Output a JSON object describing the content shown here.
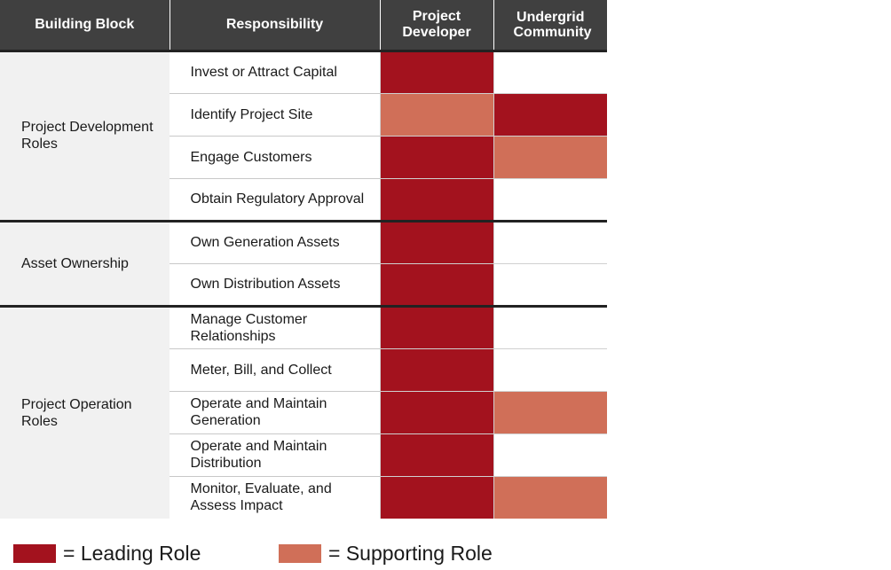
{
  "colors": {
    "leading": "#a3121e",
    "supporting": "#d06f58",
    "none": "#ffffff"
  },
  "header": {
    "building_block": "Building Block",
    "responsibility": "Responsibility",
    "project_developer": "Project Developer",
    "undergrid_community": "Undergrid Community"
  },
  "groups": [
    {
      "name": "Project Development Roles",
      "rows": [
        {
          "responsibility": "Invest or Attract Capital",
          "project_developer": "leading",
          "undergrid_community": "none"
        },
        {
          "responsibility": "Identify Project Site",
          "project_developer": "supporting",
          "undergrid_community": "leading"
        },
        {
          "responsibility": "Engage Customers",
          "project_developer": "leading",
          "undergrid_community": "supporting"
        },
        {
          "responsibility": "Obtain Regulatory Approval",
          "project_developer": "leading",
          "undergrid_community": "none"
        }
      ]
    },
    {
      "name": "Asset Ownership",
      "rows": [
        {
          "responsibility": "Own Generation Assets",
          "project_developer": "leading",
          "undergrid_community": "none"
        },
        {
          "responsibility": "Own Distribution Assets",
          "project_developer": "leading",
          "undergrid_community": "none"
        }
      ]
    },
    {
      "name": "Project Operation Roles",
      "rows": [
        {
          "responsibility": "Manage Customer Relationships",
          "project_developer": "leading",
          "undergrid_community": "none"
        },
        {
          "responsibility": "Meter, Bill, and Collect",
          "project_developer": "leading",
          "undergrid_community": "none"
        },
        {
          "responsibility": "Operate and Maintain Generation",
          "project_developer": "leading",
          "undergrid_community": "supporting"
        },
        {
          "responsibility": "Operate and Maintain Distribution",
          "project_developer": "leading",
          "undergrid_community": "none"
        },
        {
          "responsibility": "Monitor, Evaluate, and Assess Impact",
          "project_developer": "leading",
          "undergrid_community": "supporting"
        }
      ]
    }
  ],
  "legend": {
    "leading_label": "= Leading Role",
    "supporting_label": "= Supporting Role"
  }
}
